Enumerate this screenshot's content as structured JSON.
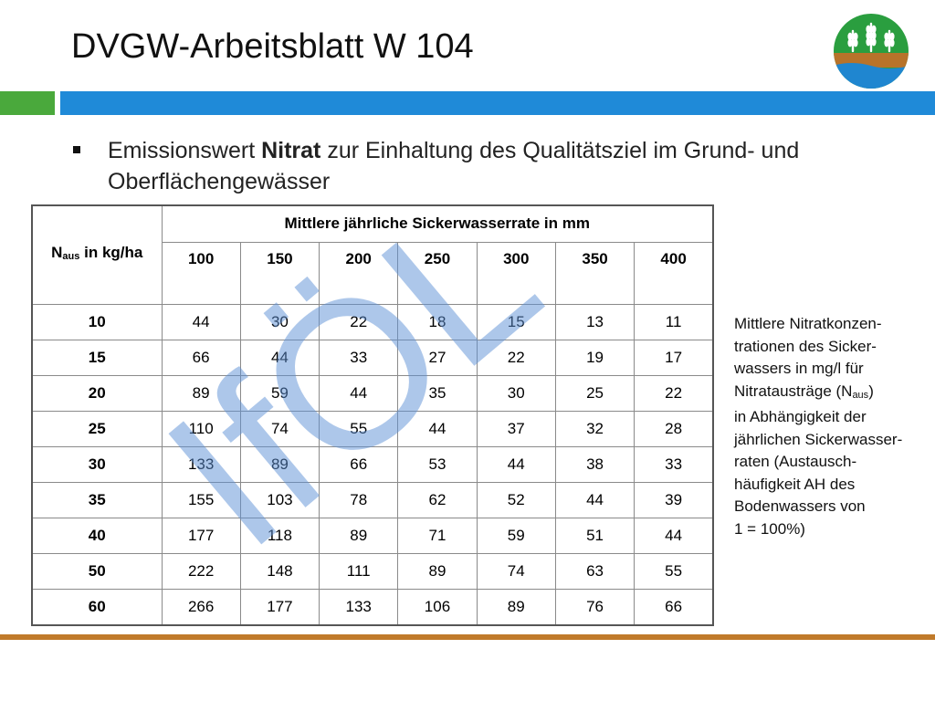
{
  "slide": {
    "title": "DVGW-Arbeitsblatt W 104",
    "bullet_prefix": "Emissionswert ",
    "bullet_bold": "Nitrat",
    "bullet_suffix": " zur Einhaltung des Qualitätsziel im Grund- und Oberflächengewässer"
  },
  "table": {
    "corner_pre": "N",
    "corner_sub": "aus",
    "corner_post": " in kg/ha",
    "group_header": "Mittlere jährliche Sickerwasserrate in mm",
    "columns": [
      "100",
      "150",
      "200",
      "250",
      "300",
      "350",
      "400"
    ],
    "rows": [
      {
        "label": "10",
        "values": [
          "44",
          "30",
          "22",
          "18",
          "15",
          "13",
          "11"
        ]
      },
      {
        "label": "15",
        "values": [
          "66",
          "44",
          "33",
          "27",
          "22",
          "19",
          "17"
        ]
      },
      {
        "label": "20",
        "values": [
          "89",
          "59",
          "44",
          "35",
          "30",
          "25",
          "22"
        ]
      },
      {
        "label": "25",
        "values": [
          "110",
          "74",
          "55",
          "44",
          "37",
          "32",
          "28"
        ]
      },
      {
        "label": "30",
        "values": [
          "133",
          "89",
          "66",
          "53",
          "44",
          "38",
          "33"
        ]
      },
      {
        "label": "35",
        "values": [
          "155",
          "103",
          "78",
          "62",
          "52",
          "44",
          "39"
        ]
      },
      {
        "label": "40",
        "values": [
          "177",
          "118",
          "89",
          "71",
          "59",
          "51",
          "44"
        ]
      },
      {
        "label": "50",
        "values": [
          "222",
          "148",
          "111",
          "89",
          "74",
          "63",
          "55"
        ]
      },
      {
        "label": "60",
        "values": [
          "266",
          "177",
          "133",
          "106",
          "89",
          "76",
          "66"
        ]
      }
    ]
  },
  "note": {
    "lines_before": [
      "Mittlere Nitratkonzen-",
      "trationen des Sicker-",
      "wassers in mg/l für"
    ],
    "sub_line_pre": "Nitratausträge (N",
    "sub_line_sub": "aus",
    "sub_line_post": ")",
    "lines_after": [
      "in Abhängigkeit der",
      "jährlichen Sickerwasser-",
      "raten (Austausch-",
      "häufigkeit AH des",
      "Bodenwassers von",
      "1  =  100%)"
    ]
  },
  "watermark": {
    "text": "IfÖL",
    "color": "#5b8fd6"
  },
  "colors": {
    "accent_green": "#4aa93c",
    "accent_blue": "#1f8ad8",
    "highlight_cell": "#d8e5c3",
    "bottom_rule": "#c07a2a"
  },
  "logo": {
    "icon": "wheat-field-water-icon"
  }
}
